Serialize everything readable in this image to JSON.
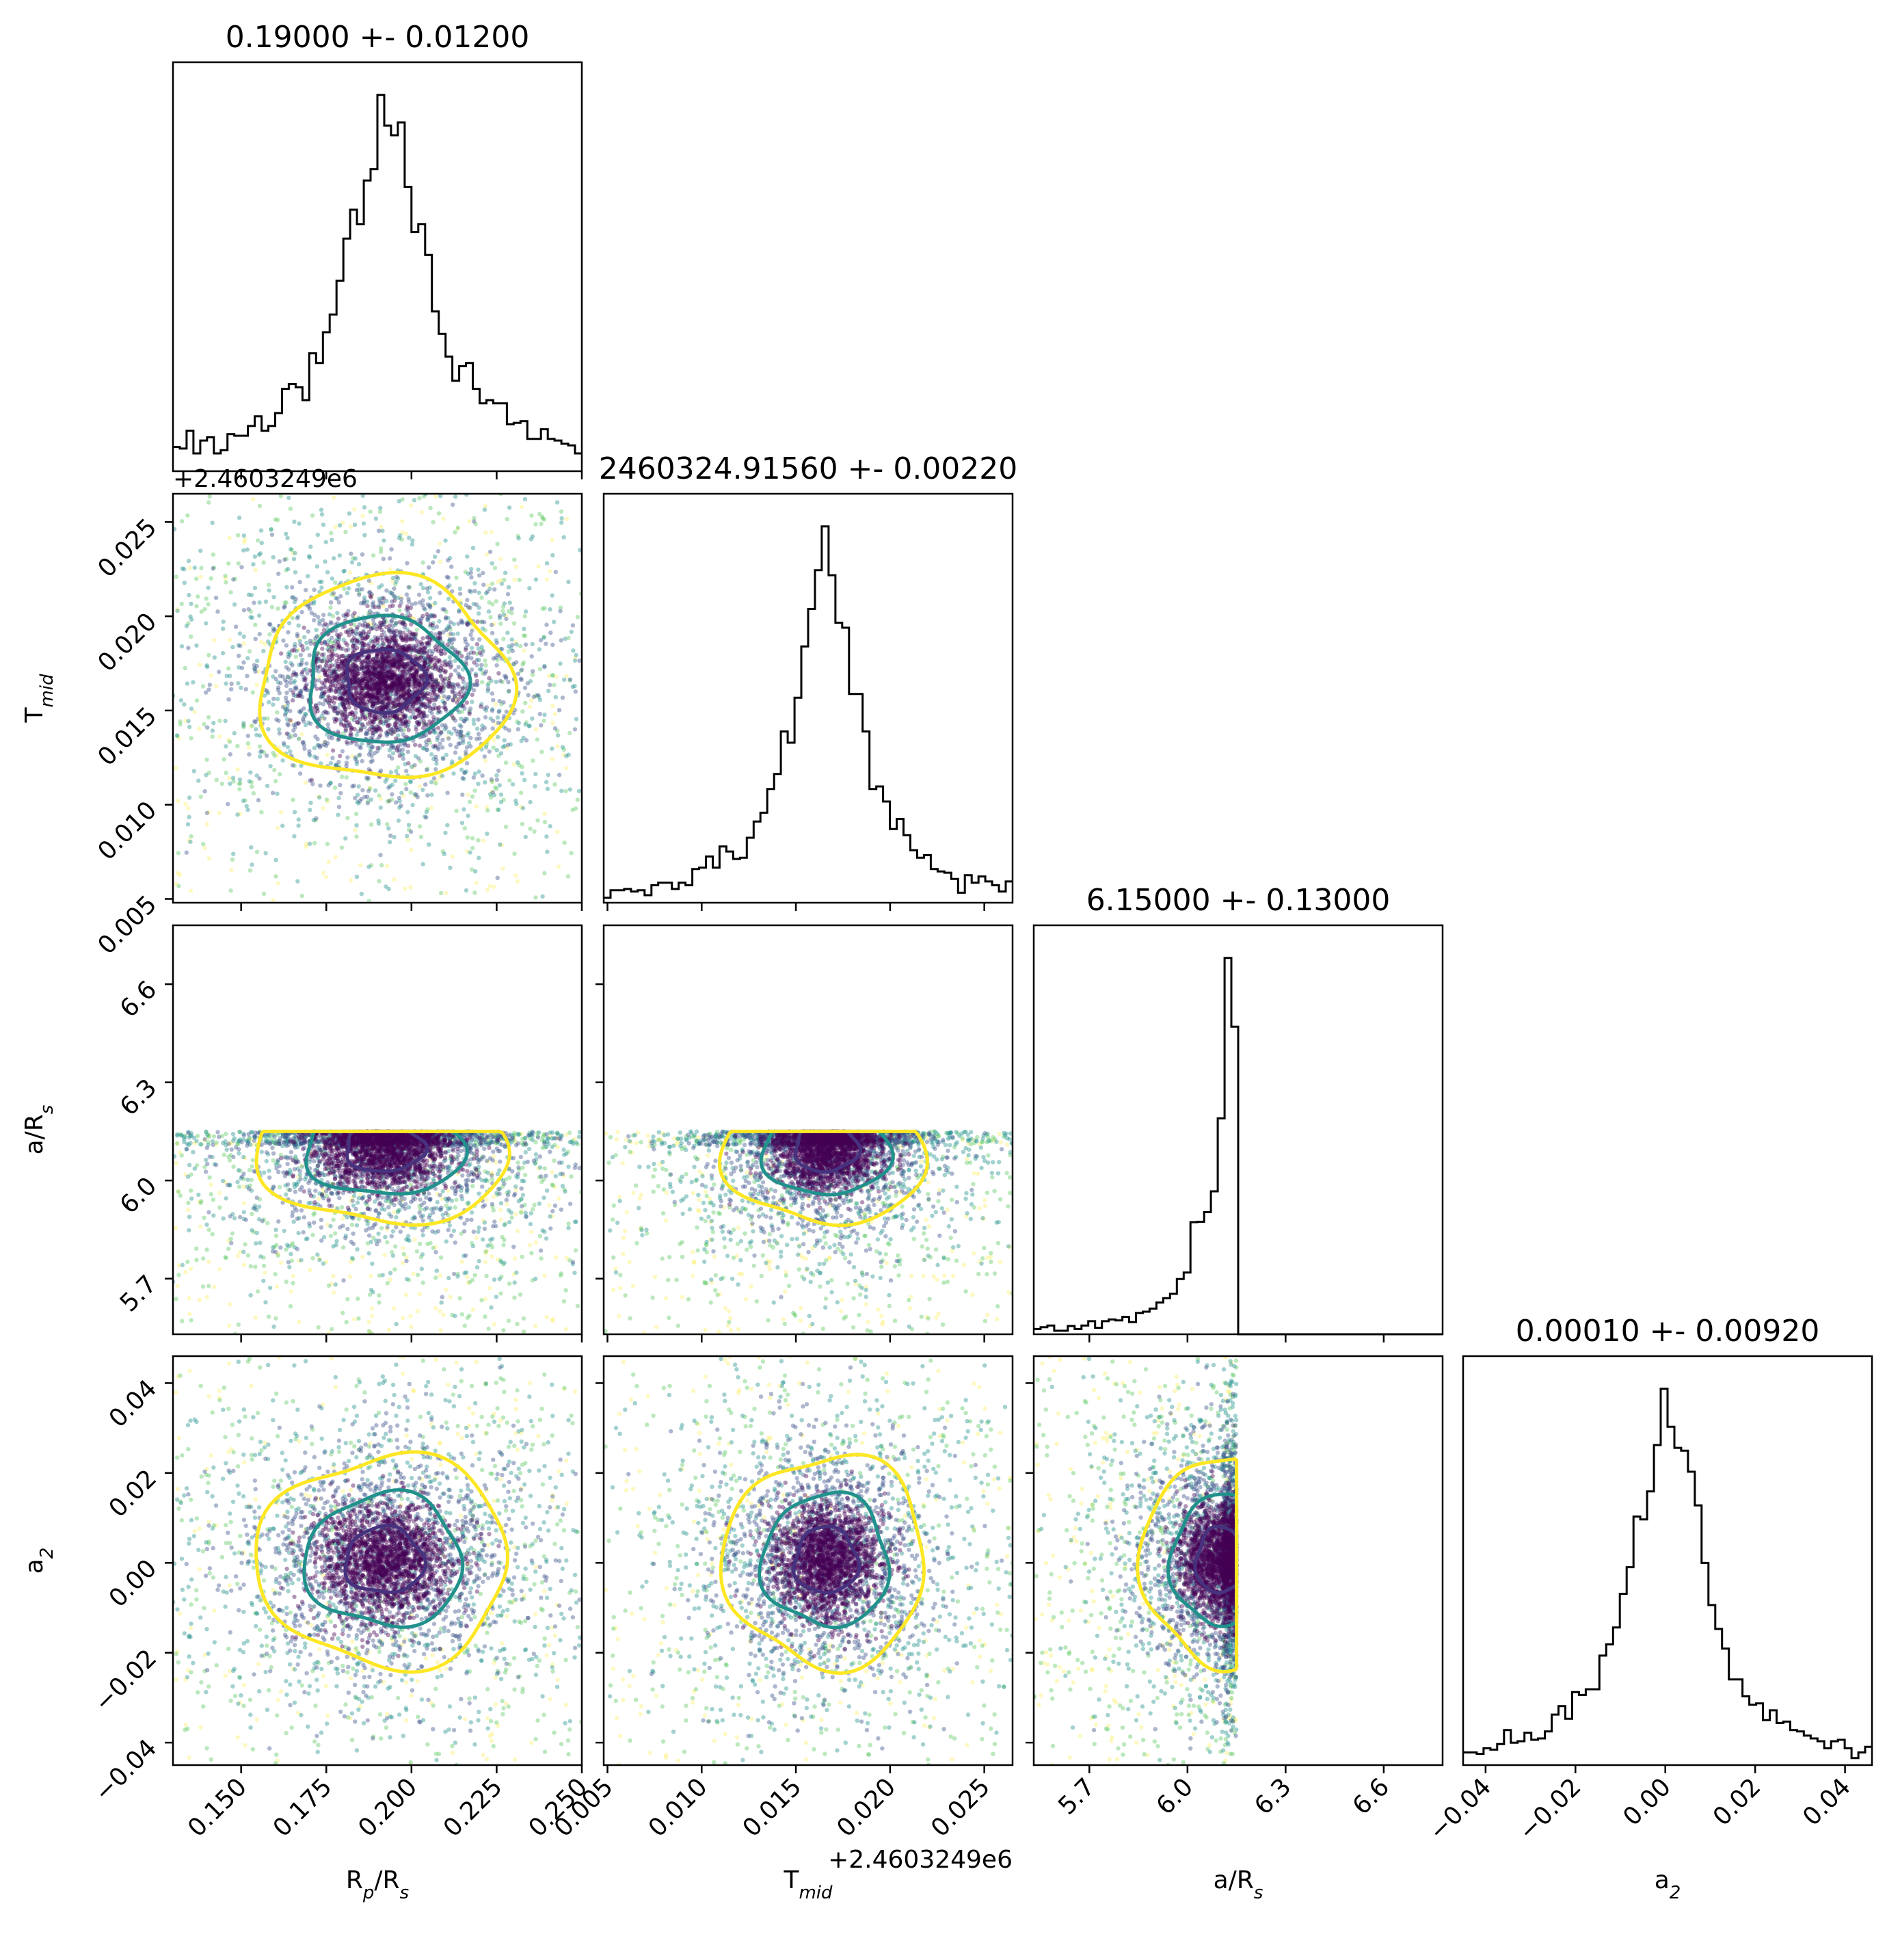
{
  "chart_data": {
    "type": "corner",
    "parameters": [
      {
        "key": "rp",
        "label_main": "R",
        "label_sub1": "p",
        "label_mid": "/R",
        "label_sub2": "s",
        "title": "0.19000 +- 0.01200",
        "range": [
          0.13,
          0.25
        ],
        "ticks": [
          0.15,
          0.175,
          0.2,
          0.225,
          0.25
        ],
        "tick_labels": [
          "0.150",
          "0.175",
          "0.200",
          "0.225",
          "0.250"
        ],
        "offset_text": "",
        "median": 0.192,
        "sigma": 0.011,
        "upper_bound": null
      },
      {
        "key": "tmid",
        "label_main": "T",
        "label_sub1": "mid",
        "label_mid": "",
        "label_sub2": "",
        "title": "2460324.91560 +- 0.00220",
        "range": [
          0.0048,
          0.0265
        ],
        "ticks": [
          0.005,
          0.01,
          0.015,
          0.02,
          0.025
        ],
        "tick_labels": [
          "0.005",
          "0.010",
          "0.015",
          "0.020",
          "0.025"
        ],
        "offset_text": "+2.4603249e6",
        "median": 0.0166,
        "sigma": 0.0016,
        "upper_bound": null
      },
      {
        "key": "ars",
        "label_main": "a/R",
        "label_sub1": "s",
        "label_mid": "",
        "label_sub2": "",
        "title": "6.15000 +- 0.13000",
        "range": [
          5.53,
          6.78
        ],
        "ticks": [
          5.7,
          6.0,
          6.3,
          6.6
        ],
        "tick_labels": [
          "5.7",
          "6.0",
          "6.3",
          "6.6"
        ],
        "offset_text": "",
        "median": 6.1,
        "sigma": 0.07,
        "upper_bound": 6.15
      },
      {
        "key": "a2",
        "label_main": "a",
        "label_sub1": "2",
        "label_mid": "",
        "label_sub2": "",
        "title": "0.00010 +- 0.00920",
        "range": [
          -0.045,
          0.046
        ],
        "ticks": [
          -0.04,
          -0.02,
          0.0,
          0.02,
          0.04
        ],
        "tick_labels": [
          "−0.04",
          "−0.02",
          "0.00",
          "0.02",
          "0.04"
        ],
        "offset_text": "",
        "median": 0.0005,
        "sigma": 0.007,
        "upper_bound": null
      }
    ],
    "contour_levels": [
      "inner",
      "middle",
      "outer"
    ],
    "colors": {
      "hist": "#000000",
      "contour_inner": "#46327e",
      "contour_middle": "#21918c",
      "contour_outer": "#fde725",
      "points": [
        "#440154",
        "#3b528b",
        "#21918c",
        "#5ec962",
        "#fde725"
      ]
    }
  }
}
